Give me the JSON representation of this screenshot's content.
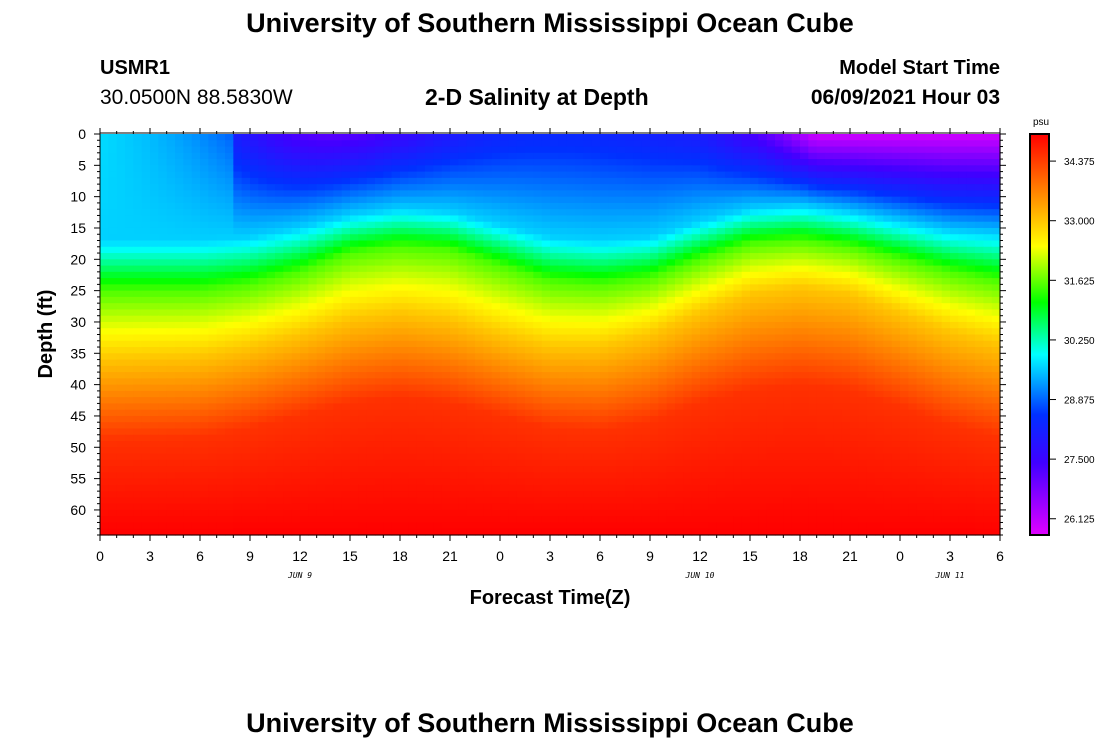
{
  "header": {
    "title": "University of Southern Mississippi Ocean Cube",
    "station_id": "USMR1",
    "station_coords": "30.0500N  88.5830W",
    "plot_title": "2-D Salinity at Depth",
    "model_start_label": "Model Start Time",
    "model_start_value": "06/09/2021 Hour 03"
  },
  "footer": {
    "title": "University of Southern Mississippi Ocean Cube"
  },
  "chart_data": {
    "type": "heatmap",
    "title": "2-D Salinity at Depth",
    "xlabel": "Forecast Time(Z)",
    "ylabel": "Depth (ft)",
    "x_range_hours": [
      0,
      54
    ],
    "y_range_ft": [
      0,
      64
    ],
    "x_ticks": [
      "0",
      "3",
      "6",
      "9",
      "12",
      "15",
      "18",
      "21",
      "0",
      "3",
      "6",
      "9",
      "12",
      "15",
      "18",
      "21",
      "0",
      "3",
      "6"
    ],
    "y_ticks": [
      "0",
      "5",
      "10",
      "15",
      "20",
      "25",
      "30",
      "35",
      "40",
      "45",
      "50",
      "55",
      "60"
    ],
    "date_labels": [
      {
        "label": "JUN 9",
        "hour": 12
      },
      {
        "label": "JUN 10",
        "hour": 36
      },
      {
        "label": "JUN 11",
        "hour": 51
      }
    ],
    "colorbar": {
      "unit": "psu",
      "min": 25.75,
      "max": 35.0,
      "ticks": [
        "26.125",
        "27.500",
        "28.875",
        "30.250",
        "31.625",
        "33.000",
        "34.375"
      ]
    },
    "isolines_ft": {
      "hours": [
        0,
        6,
        9,
        12,
        15,
        18,
        21,
        24,
        27,
        30,
        33,
        36,
        39,
        42,
        45,
        48,
        51,
        54
      ],
      "s_29_5": [
        17,
        17,
        16.5,
        15,
        13,
        12,
        12.5,
        14.5,
        16.5,
        17,
        16.5,
        14,
        12,
        11.5,
        12.5,
        14,
        15.5,
        16
      ],
      "s_31_5": [
        25,
        25,
        24,
        22,
        19,
        18,
        18.5,
        21,
        23.5,
        24,
        23,
        20,
        17.5,
        17,
        18,
        20,
        22,
        23.5
      ],
      "s_33_0": [
        36,
        35.5,
        34,
        32,
        29.5,
        28.5,
        29.5,
        32,
        34,
        34,
        32,
        28.5,
        25.5,
        24.5,
        25.5,
        28.5,
        31.5,
        33.5
      ],
      "s_34_5": [
        49,
        48.5,
        47,
        45,
        43,
        42,
        43,
        45,
        47,
        47.5,
        46,
        43,
        41,
        40,
        41,
        43.5,
        46.5,
        48.5
      ]
    },
    "surface_min_zone": {
      "hour_center": 48,
      "min_psu": 25.9
    }
  }
}
